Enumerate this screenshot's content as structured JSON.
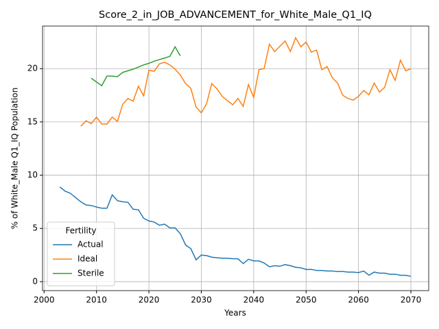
{
  "chart_data": {
    "type": "line",
    "title": "Score_2_in_JOB_ADVANCEMENT_for_White_Male_Q1_IQ",
    "x_label": "Years",
    "y_label": "% of White_Male Q1_IQ Population",
    "xlim": [
      1999.7,
      2073.4
    ],
    "ylim": [
      -0.84,
      24
    ],
    "xticks": [
      2000,
      2010,
      2020,
      2030,
      2040,
      2050,
      2060,
      2070
    ],
    "yticks": [
      0,
      5,
      10,
      15,
      20
    ],
    "grid": true,
    "legend_title": "Fertility",
    "legend_position": "lower left",
    "series": [
      {
        "name": "Actual",
        "color": "#1f77b4",
        "x": [
          2003,
          2004,
          2005,
          2006,
          2007,
          2008,
          2009,
          2010,
          2011,
          2012,
          2013,
          2014,
          2015,
          2016,
          2017,
          2018,
          2019,
          2020,
          2021,
          2022,
          2023,
          2024,
          2025,
          2026,
          2027,
          2028,
          2029,
          2030,
          2031,
          2032,
          2033,
          2034,
          2035,
          2036,
          2037,
          2038,
          2039,
          2040,
          2041,
          2042,
          2043,
          2044,
          2045,
          2046,
          2047,
          2048,
          2049,
          2050,
          2051,
          2052,
          2053,
          2054,
          2055,
          2056,
          2057,
          2058,
          2059,
          2060,
          2061,
          2062,
          2063,
          2064,
          2065,
          2066,
          2067,
          2068,
          2069,
          2070
        ],
        "values": [
          8.9,
          8.5,
          8.3,
          7.9,
          7.5,
          7.2,
          7.15,
          7.0,
          6.9,
          6.9,
          8.15,
          7.6,
          7.5,
          7.45,
          6.8,
          6.75,
          5.95,
          5.7,
          5.6,
          5.3,
          5.4,
          5.05,
          5.05,
          4.5,
          3.45,
          3.1,
          2.05,
          2.5,
          2.45,
          2.3,
          2.25,
          2.2,
          2.2,
          2.15,
          2.15,
          1.7,
          2.1,
          1.95,
          1.95,
          1.75,
          1.4,
          1.5,
          1.45,
          1.6,
          1.5,
          1.35,
          1.3,
          1.15,
          1.15,
          1.05,
          1.05,
          1.0,
          1.0,
          0.95,
          0.95,
          0.9,
          0.9,
          0.85,
          1.0,
          0.6,
          0.9,
          0.8,
          0.8,
          0.7,
          0.7,
          0.6,
          0.6,
          0.5
        ]
      },
      {
        "name": "Ideal",
        "color": "#ff7f0e",
        "x": [
          2007,
          2008,
          2009,
          2010,
          2011,
          2012,
          2013,
          2014,
          2015,
          2016,
          2017,
          2018,
          2019,
          2020,
          2021,
          2022,
          2023,
          2024,
          2025,
          2026,
          2027,
          2028,
          2029,
          2030,
          2031,
          2032,
          2033,
          2034,
          2035,
          2036,
          2037,
          2038,
          2039,
          2040,
          2041,
          2042,
          2043,
          2044,
          2045,
          2046,
          2047,
          2048,
          2049,
          2050,
          2051,
          2052,
          2053,
          2054,
          2055,
          2056,
          2057,
          2058,
          2059,
          2060,
          2061,
          2062,
          2063,
          2064,
          2065,
          2066,
          2067,
          2068,
          2069,
          2070
        ],
        "values": [
          14.6,
          15.1,
          14.85,
          15.45,
          14.8,
          14.8,
          15.45,
          15.05,
          16.65,
          17.2,
          16.95,
          18.35,
          17.45,
          19.85,
          19.75,
          20.45,
          20.6,
          20.35,
          19.95,
          19.4,
          18.6,
          18.15,
          16.4,
          15.85,
          16.7,
          18.6,
          18.1,
          17.4,
          17.0,
          16.6,
          17.2,
          16.45,
          18.5,
          17.3,
          19.9,
          20.0,
          22.3,
          21.6,
          22.1,
          22.6,
          21.6,
          22.9,
          22.05,
          22.5,
          21.55,
          21.75,
          19.9,
          20.2,
          19.15,
          18.65,
          17.5,
          17.2,
          17.05,
          17.4,
          17.95,
          17.55,
          18.65,
          17.8,
          18.25,
          19.9,
          18.9,
          20.8,
          19.8,
          20.0
        ]
      },
      {
        "name": "Sterile",
        "color": "#2ca02c",
        "x": [
          2009,
          2010,
          2011,
          2012,
          2013,
          2014,
          2015,
          2016,
          2017,
          2018,
          2019,
          2020,
          2021,
          2022,
          2023,
          2024,
          2025,
          2026
        ],
        "values": [
          19.1,
          18.75,
          18.4,
          19.3,
          19.3,
          19.25,
          19.65,
          19.8,
          19.95,
          20.15,
          20.35,
          20.5,
          20.7,
          20.85,
          21.0,
          21.15,
          22.05,
          21.2
        ]
      }
    ]
  }
}
